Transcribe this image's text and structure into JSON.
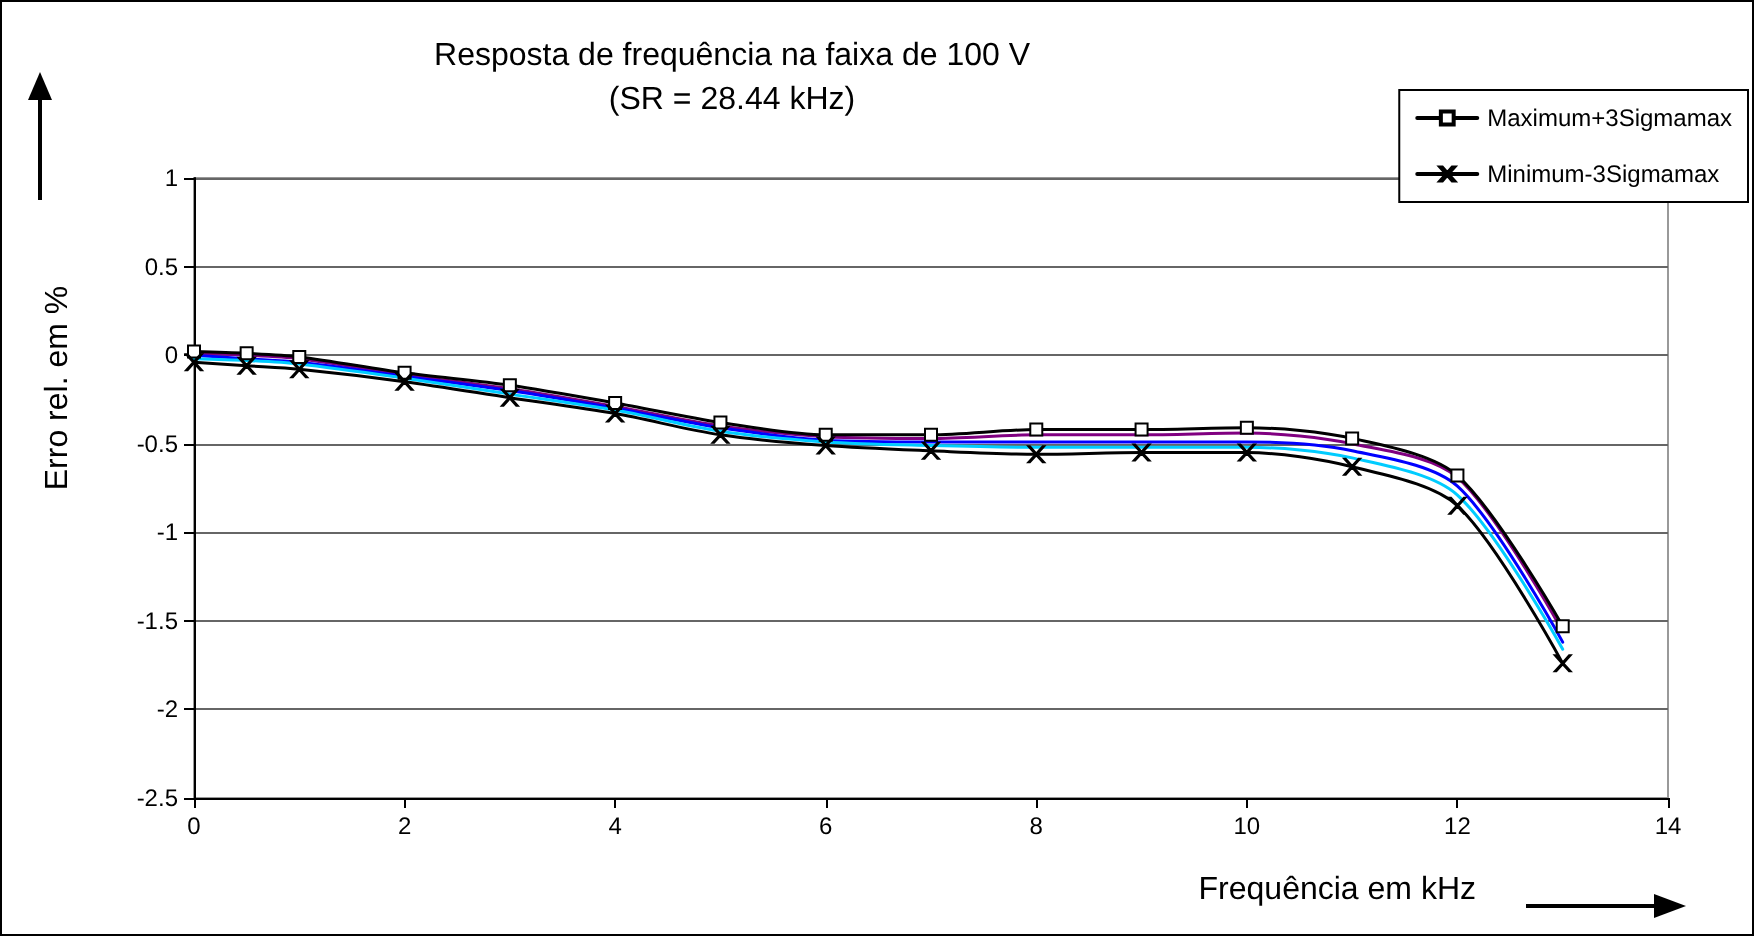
{
  "chart_data": {
    "type": "line",
    "title": "Resposta de frequência na faixa de 100 V",
    "subtitle": "(SR = 28.44 kHz)",
    "xlabel": "Frequência em kHz",
    "ylabel": "Erro rel. em %",
    "x": [
      0,
      0.5,
      1,
      2,
      3,
      4,
      5,
      6,
      7,
      8,
      9,
      10,
      11,
      12,
      13
    ],
    "series": [
      {
        "name": "Maximum+3Sigmamax",
        "color": "#000000",
        "marker": "square",
        "values": [
          0.02,
          0.01,
          -0.01,
          -0.1,
          -0.17,
          -0.27,
          -0.38,
          -0.45,
          -0.45,
          -0.42,
          -0.42,
          -0.41,
          -0.47,
          -0.68,
          -1.53
        ]
      },
      {
        "color": "#800080",
        "marker": "none",
        "values": [
          0.01,
          0,
          -0.02,
          -0.11,
          -0.19,
          -0.29,
          -0.4,
          -0.46,
          -0.47,
          -0.45,
          -0.45,
          -0.44,
          -0.5,
          -0.69,
          -1.56
        ]
      },
      {
        "color": "#0000ff",
        "marker": "none",
        "values": [
          0,
          -0.02,
          -0.04,
          -0.12,
          -0.2,
          -0.3,
          -0.41,
          -0.48,
          -0.49,
          -0.49,
          -0.49,
          -0.49,
          -0.54,
          -0.74,
          -1.62
        ]
      },
      {
        "color": "#00ccff",
        "marker": "none",
        "values": [
          -0.02,
          -0.03,
          -0.05,
          -0.13,
          -0.22,
          -0.31,
          -0.43,
          -0.49,
          -0.51,
          -0.52,
          -0.52,
          -0.52,
          -0.58,
          -0.79,
          -1.66
        ]
      },
      {
        "name": "Minimum-3Sigmamax",
        "color": "#000000",
        "marker": "cross",
        "values": [
          -0.04,
          -0.06,
          -0.08,
          -0.15,
          -0.24,
          -0.33,
          -0.45,
          -0.51,
          -0.54,
          -0.56,
          -0.55,
          -0.55,
          -0.63,
          -0.85,
          -1.74
        ]
      }
    ],
    "xlim": [
      0,
      14
    ],
    "xticks": [
      0,
      2,
      4,
      6,
      8,
      10,
      12,
      14
    ],
    "ylim": [
      -2.5,
      1
    ],
    "yticks": [
      -2.5,
      -2,
      -1.5,
      -1,
      -0.5,
      0,
      0.5,
      1
    ],
    "grid": "y",
    "legend": "top right"
  }
}
